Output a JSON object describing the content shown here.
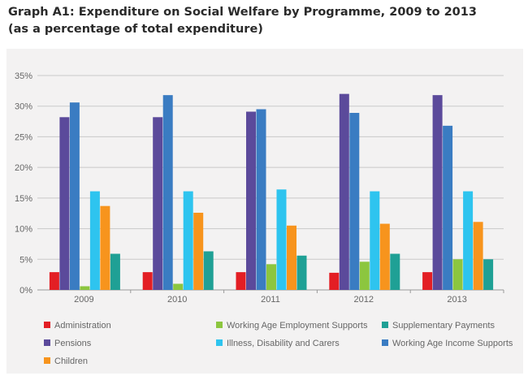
{
  "header": {
    "title_line1": "Graph A1: Expenditure on Social Welfare by Programme, 2009 to 2013",
    "title_line2": "(as a percentage of total expenditure)"
  },
  "chart_data": {
    "type": "bar",
    "title": "Graph A1: Expenditure on Social Welfare by Programme, 2009 to 2013",
    "subtitle": "(as a percentage of total expenditure)",
    "categories": [
      "2009",
      "2010",
      "2011",
      "2012",
      "2013"
    ],
    "ylim": [
      0,
      35
    ],
    "yticks": [
      0,
      5,
      10,
      15,
      20,
      25,
      30,
      35
    ],
    "ytick_labels": [
      "0%",
      "5%",
      "10%",
      "15%",
      "20%",
      "25%",
      "30%",
      "35%"
    ],
    "grid": true,
    "legend_position": "bottom",
    "series": [
      {
        "name": "Administration",
        "color": "#e31e24",
        "values": [
          2.9,
          2.9,
          2.9,
          2.8,
          2.9
        ]
      },
      {
        "name": "Pensions",
        "color": "#5b4a9b",
        "values": [
          28.2,
          28.2,
          29.1,
          32.0,
          31.8
        ]
      },
      {
        "name": "Working Age Income Supports",
        "color": "#3a7cc2",
        "values": [
          30.6,
          31.8,
          29.5,
          28.9,
          26.8
        ]
      },
      {
        "name": "Working Age Employment Supports",
        "color": "#8cc63f",
        "values": [
          0.6,
          1.0,
          4.2,
          4.6,
          5.0
        ]
      },
      {
        "name": "Illness, Disability and Carers",
        "color": "#2ec4ef",
        "values": [
          16.1,
          16.1,
          16.4,
          16.1,
          16.1
        ]
      },
      {
        "name": "Children",
        "color": "#f7941d",
        "values": [
          13.7,
          12.6,
          10.5,
          10.8,
          11.1
        ]
      },
      {
        "name": "Supplementary Payments",
        "color": "#1fa095",
        "values": [
          5.9,
          6.3,
          5.6,
          5.9,
          5.0
        ]
      }
    ],
    "legend_order": [
      "Administration",
      "Working Age Employment Supports",
      "Supplementary Payments",
      "Pensions",
      "Illness, Disability and Carers",
      "Working Age Income Supports",
      "Children"
    ]
  }
}
